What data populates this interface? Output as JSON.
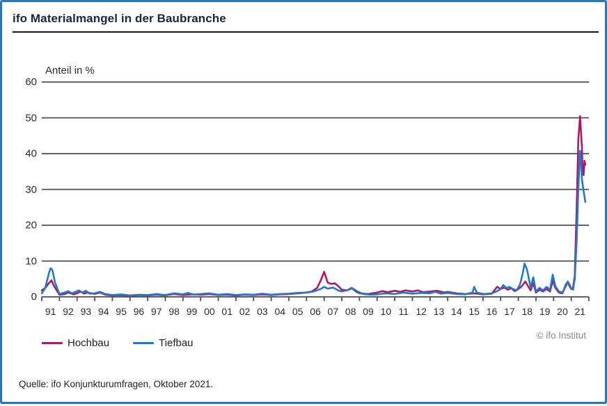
{
  "header": {
    "title": "ifo Materialmangel in der Baubranche"
  },
  "chart_data": {
    "type": "line",
    "title": "ifo Materialmangel in der Baubranche",
    "ylabel": "Anteil in %",
    "xlabel": "",
    "ylim": [
      0,
      60
    ],
    "y_ticks": [
      0,
      10,
      20,
      30,
      40,
      50,
      60
    ],
    "x_range_years": [
      1991,
      2022
    ],
    "x_tick_labels": [
      "91",
      "92",
      "93",
      "94",
      "95",
      "96",
      "97",
      "98",
      "99",
      "00",
      "01",
      "02",
      "03",
      "04",
      "05",
      "06",
      "07",
      "08",
      "09",
      "10",
      "11",
      "12",
      "13",
      "14",
      "15",
      "16",
      "17",
      "18",
      "19",
      "20",
      "21"
    ],
    "grid": "horizontal",
    "grid_color": "#4d4d4d",
    "legend_position": "bottom-left",
    "series": [
      {
        "name": "Hochbau",
        "color": "#ab1a67",
        "points": [
          [
            1991.0,
            1.8
          ],
          [
            1991.2,
            2.5
          ],
          [
            1991.4,
            3.8
          ],
          [
            1991.55,
            4.6
          ],
          [
            1991.7,
            3.0
          ],
          [
            1992.0,
            0.6
          ],
          [
            1992.3,
            0.8
          ],
          [
            1992.5,
            1.2
          ],
          [
            1992.8,
            0.7
          ],
          [
            1993.0,
            1.0
          ],
          [
            1993.2,
            1.5
          ],
          [
            1993.4,
            0.9
          ],
          [
            1993.6,
            1.2
          ],
          [
            1994.0,
            0.8
          ],
          [
            1994.3,
            1.2
          ],
          [
            1994.6,
            0.6
          ],
          [
            1995.0,
            0.4
          ],
          [
            1995.5,
            0.5
          ],
          [
            1996.0,
            0.3
          ],
          [
            1996.5,
            0.5
          ],
          [
            1997.0,
            0.4
          ],
          [
            1997.5,
            0.6
          ],
          [
            1998.0,
            0.4
          ],
          [
            1998.5,
            0.8
          ],
          [
            1999.0,
            0.5
          ],
          [
            1999.5,
            0.7
          ],
          [
            2000.0,
            0.6
          ],
          [
            2000.5,
            0.8
          ],
          [
            2001.0,
            0.5
          ],
          [
            2001.5,
            0.6
          ],
          [
            2002.0,
            0.4
          ],
          [
            2002.5,
            0.6
          ],
          [
            2003.0,
            0.5
          ],
          [
            2003.5,
            0.7
          ],
          [
            2004.0,
            0.5
          ],
          [
            2004.5,
            0.7
          ],
          [
            2005.0,
            0.8
          ],
          [
            2005.5,
            1.0
          ],
          [
            2006.0,
            1.2
          ],
          [
            2006.3,
            1.5
          ],
          [
            2006.6,
            2.5
          ],
          [
            2006.8,
            4.5
          ],
          [
            2007.0,
            7.0
          ],
          [
            2007.1,
            5.5
          ],
          [
            2007.2,
            4.0
          ],
          [
            2007.4,
            3.6
          ],
          [
            2007.6,
            3.8
          ],
          [
            2007.8,
            3.0
          ],
          [
            2008.0,
            2.0
          ],
          [
            2008.3,
            1.8
          ],
          [
            2008.55,
            2.5
          ],
          [
            2008.8,
            1.5
          ],
          [
            2009.0,
            1.0
          ],
          [
            2009.5,
            0.8
          ],
          [
            2010.0,
            1.2
          ],
          [
            2010.3,
            1.6
          ],
          [
            2010.6,
            1.3
          ],
          [
            2011.0,
            1.7
          ],
          [
            2011.3,
            1.4
          ],
          [
            2011.6,
            1.8
          ],
          [
            2012.0,
            1.5
          ],
          [
            2012.3,
            1.8
          ],
          [
            2012.6,
            1.3
          ],
          [
            2013.0,
            1.5
          ],
          [
            2013.4,
            1.7
          ],
          [
            2013.8,
            1.2
          ],
          [
            2014.0,
            1.4
          ],
          [
            2014.5,
            1.0
          ],
          [
            2015.0,
            0.8
          ],
          [
            2015.5,
            1.0
          ],
          [
            2016.0,
            0.7
          ],
          [
            2016.5,
            0.9
          ],
          [
            2016.8,
            2.8
          ],
          [
            2017.0,
            2.2
          ],
          [
            2017.2,
            2.6
          ],
          [
            2017.4,
            2.0
          ],
          [
            2017.6,
            2.4
          ],
          [
            2017.8,
            1.6
          ],
          [
            2018.0,
            2.2
          ],
          [
            2018.2,
            3.0
          ],
          [
            2018.4,
            4.3
          ],
          [
            2018.55,
            3.0
          ],
          [
            2018.7,
            1.8
          ],
          [
            2018.85,
            3.8
          ],
          [
            2019.0,
            1.2
          ],
          [
            2019.2,
            2.0
          ],
          [
            2019.4,
            1.5
          ],
          [
            2019.6,
            2.2
          ],
          [
            2019.8,
            1.5
          ],
          [
            2019.95,
            4.5
          ],
          [
            2020.1,
            2.5
          ],
          [
            2020.3,
            1.2
          ],
          [
            2020.5,
            1.0
          ],
          [
            2020.7,
            3.5
          ],
          [
            2020.8,
            4.2
          ],
          [
            2020.9,
            3.0
          ],
          [
            2021.0,
            2.2
          ],
          [
            2021.1,
            2.5
          ],
          [
            2021.2,
            6.0
          ],
          [
            2021.3,
            23.9
          ],
          [
            2021.4,
            43.9
          ],
          [
            2021.5,
            50.5
          ],
          [
            2021.6,
            42.0
          ],
          [
            2021.65,
            34.5
          ],
          [
            2021.7,
            34.0
          ],
          [
            2021.75,
            38.0
          ],
          [
            2021.8,
            36.9
          ]
        ]
      },
      {
        "name": "Tiefbau",
        "color": "#2478c8",
        "points": [
          [
            1991.0,
            1.0
          ],
          [
            1991.2,
            2.5
          ],
          [
            1991.4,
            6.5
          ],
          [
            1991.5,
            8.0
          ],
          [
            1991.6,
            7.5
          ],
          [
            1991.75,
            4.0
          ],
          [
            1992.0,
            0.8
          ],
          [
            1992.3,
            1.2
          ],
          [
            1992.5,
            1.6
          ],
          [
            1992.7,
            1.0
          ],
          [
            1992.9,
            1.4
          ],
          [
            1993.1,
            1.8
          ],
          [
            1993.3,
            1.2
          ],
          [
            1993.5,
            1.7
          ],
          [
            1993.7,
            0.9
          ],
          [
            1994.0,
            1.0
          ],
          [
            1994.3,
            1.4
          ],
          [
            1994.6,
            0.8
          ],
          [
            1995.0,
            0.5
          ],
          [
            1995.5,
            0.7
          ],
          [
            1996.0,
            0.4
          ],
          [
            1996.5,
            0.6
          ],
          [
            1997.0,
            0.5
          ],
          [
            1997.5,
            0.8
          ],
          [
            1998.0,
            0.5
          ],
          [
            1998.5,
            1.0
          ],
          [
            1999.0,
            0.7
          ],
          [
            1999.3,
            1.1
          ],
          [
            1999.6,
            0.6
          ],
          [
            2000.0,
            0.8
          ],
          [
            2000.5,
            1.0
          ],
          [
            2001.0,
            0.6
          ],
          [
            2001.5,
            0.8
          ],
          [
            2002.0,
            0.5
          ],
          [
            2002.5,
            0.7
          ],
          [
            2003.0,
            0.6
          ],
          [
            2003.5,
            0.9
          ],
          [
            2004.0,
            0.6
          ],
          [
            2004.5,
            0.8
          ],
          [
            2005.0,
            0.9
          ],
          [
            2005.5,
            1.1
          ],
          [
            2006.0,
            1.2
          ],
          [
            2006.4,
            1.5
          ],
          [
            2006.8,
            2.2
          ],
          [
            2007.0,
            2.8
          ],
          [
            2007.2,
            2.3
          ],
          [
            2007.5,
            2.6
          ],
          [
            2007.8,
            1.8
          ],
          [
            2008.0,
            1.5
          ],
          [
            2008.4,
            2.0
          ],
          [
            2008.6,
            2.4
          ],
          [
            2008.9,
            1.5
          ],
          [
            2009.2,
            0.8
          ],
          [
            2009.6,
            0.6
          ],
          [
            2010.0,
            0.7
          ],
          [
            2010.5,
            1.0
          ],
          [
            2011.0,
            0.8
          ],
          [
            2011.5,
            1.2
          ],
          [
            2012.0,
            0.9
          ],
          [
            2012.5,
            1.1
          ],
          [
            2013.0,
            1.0
          ],
          [
            2013.3,
            1.4
          ],
          [
            2013.6,
            0.9
          ],
          [
            2014.0,
            1.1
          ],
          [
            2014.5,
            0.8
          ],
          [
            2015.0,
            0.7
          ],
          [
            2015.4,
            1.2
          ],
          [
            2015.5,
            2.8
          ],
          [
            2015.65,
            1.2
          ],
          [
            2016.0,
            0.8
          ],
          [
            2016.5,
            1.0
          ],
          [
            2016.8,
            1.6
          ],
          [
            2017.0,
            2.2
          ],
          [
            2017.15,
            3.3
          ],
          [
            2017.3,
            2.5
          ],
          [
            2017.5,
            2.8
          ],
          [
            2017.7,
            2.2
          ],
          [
            2017.9,
            1.8
          ],
          [
            2018.1,
            3.5
          ],
          [
            2018.25,
            6.5
          ],
          [
            2018.35,
            9.3
          ],
          [
            2018.5,
            7.5
          ],
          [
            2018.6,
            5.0
          ],
          [
            2018.7,
            2.5
          ],
          [
            2018.85,
            5.5
          ],
          [
            2019.0,
            1.5
          ],
          [
            2019.2,
            2.5
          ],
          [
            2019.4,
            1.8
          ],
          [
            2019.6,
            2.8
          ],
          [
            2019.8,
            2.0
          ],
          [
            2019.95,
            6.2
          ],
          [
            2020.1,
            3.0
          ],
          [
            2020.3,
            1.5
          ],
          [
            2020.5,
            1.2
          ],
          [
            2020.7,
            3.0
          ],
          [
            2020.8,
            4.3
          ],
          [
            2020.9,
            3.5
          ],
          [
            2021.0,
            2.3
          ],
          [
            2021.1,
            2.0
          ],
          [
            2021.2,
            5.0
          ],
          [
            2021.3,
            15.0
          ],
          [
            2021.4,
            30.0
          ],
          [
            2021.5,
            40.8
          ],
          [
            2021.55,
            38.0
          ],
          [
            2021.6,
            33.0
          ],
          [
            2021.7,
            29.5
          ],
          [
            2021.8,
            26.5
          ]
        ]
      }
    ],
    "annotations": [
      "© ifo Institut"
    ]
  },
  "legend": {
    "items": [
      {
        "label": "Hochbau",
        "color": "#ab1a67"
      },
      {
        "label": "Tiefbau",
        "color": "#2478c8"
      }
    ]
  },
  "copyright": "© ifo Institut",
  "footer": {
    "source": "Quelle: ifo Konjunkturumfragen, Oktober 2021."
  },
  "colors": {
    "frame_border": "#2e74b5",
    "title_text": "#1b2440",
    "grid": "#4d4d4d",
    "hochbau": "#ab1a67",
    "tiefbau": "#2478c8"
  }
}
